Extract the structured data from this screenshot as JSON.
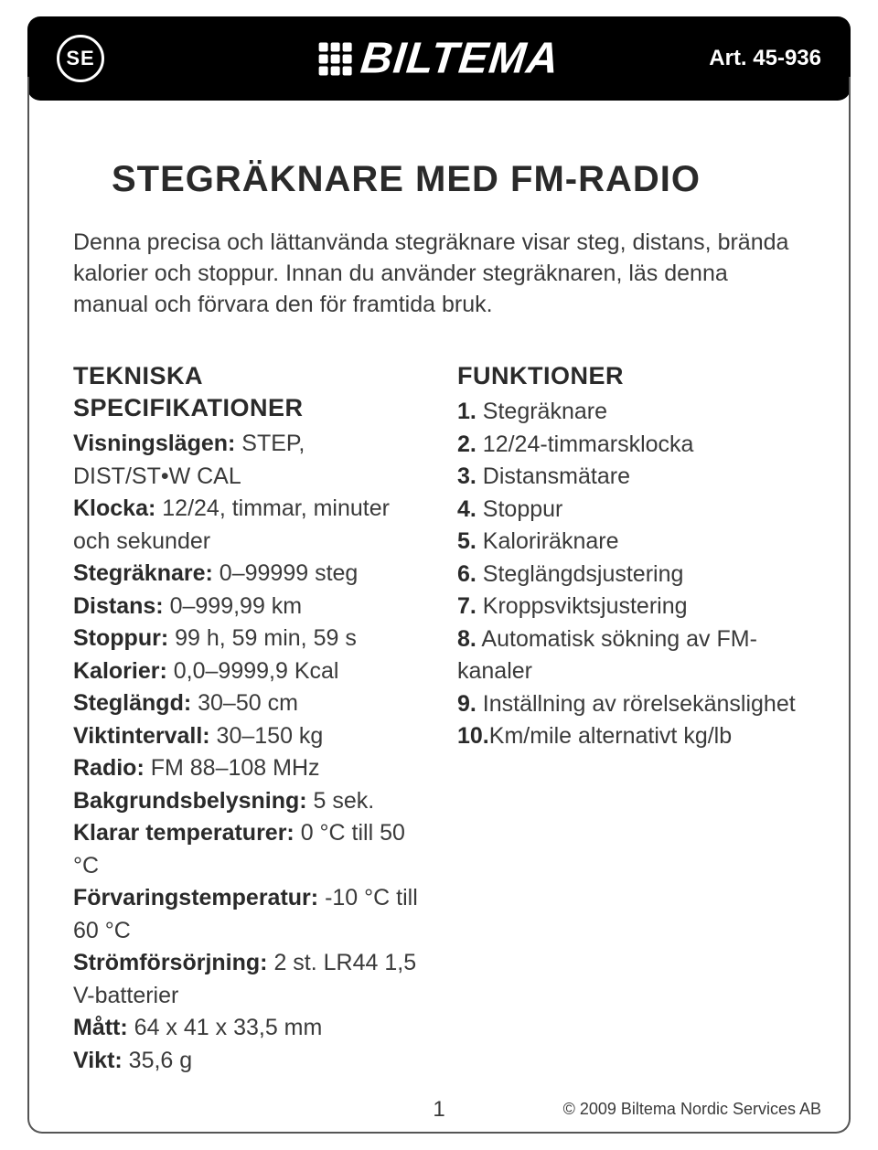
{
  "header": {
    "country_code": "SE",
    "brand": "BILTEMA",
    "art_label": "Art. 45-936"
  },
  "title": "STEGRÄKNARE MED FM-RADIO",
  "intro": "Denna precisa och lättanvända stegräknare visar steg, distans, brända kalorier och stoppur. Innan du använder stegräknaren, läs denna manual och förvara den för framtida bruk.",
  "specs": {
    "heading_line1": "TEKNISKA",
    "heading_line2": "SPECIFIKATIONER",
    "items": [
      {
        "label": "Visningslägen:",
        "value": " STEP, DIST/ST•W CAL"
      },
      {
        "label": "Klocka:",
        "value": " 12/24, timmar, minuter och sekunder"
      },
      {
        "label": "Stegräknare:",
        "value": " 0–99999 steg"
      },
      {
        "label": "Distans:",
        "value": " 0–999,99 km"
      },
      {
        "label": "Stoppur:",
        "value": " 99 h, 59 min, 59 s"
      },
      {
        "label": "Kalorier:",
        "value": " 0,0–9999,9 Kcal"
      },
      {
        "label": "Steglängd:",
        "value": " 30–50 cm"
      },
      {
        "label": "Viktintervall:",
        "value": " 30–150 kg"
      },
      {
        "label": "Radio:",
        "value": " FM 88–108 MHz"
      },
      {
        "label": "Bakgrundsbelysning:",
        "value": " 5 sek."
      },
      {
        "label": "Klarar temperaturer:",
        "value": " 0 °C till 50 °C"
      },
      {
        "label": "Förvaringstemperatur:",
        "value": " -10 °C till 60 °C"
      },
      {
        "label": "Strömförsörjning:",
        "value": " 2 st. LR44 1,5 V-batterier"
      },
      {
        "label": "Mått:",
        "value": " 64 x 41 x 33,5 mm"
      },
      {
        "label": "Vikt:",
        "value": " 35,6 g"
      }
    ]
  },
  "functions": {
    "heading": "FUNKTIONER",
    "items": [
      {
        "num": "1.",
        "text": " Stegräknare"
      },
      {
        "num": "2.",
        "text": " 12/24-timmarsklocka"
      },
      {
        "num": "3.",
        "text": " Distansmätare"
      },
      {
        "num": "4.",
        "text": " Stoppur"
      },
      {
        "num": "5.",
        "text": " Kaloriräknare"
      },
      {
        "num": "6.",
        "text": " Steglängdsjustering"
      },
      {
        "num": "7.",
        "text": " Kroppsviktsjustering"
      },
      {
        "num": "8.",
        "text": " Automatisk sökning av FM-kanaler"
      },
      {
        "num": "9.",
        "text": " Inställning av rörelsekänslighet"
      },
      {
        "num": "10.",
        "text": "Km/mile alternativt kg/lb"
      }
    ]
  },
  "page_number": "1",
  "copyright": "© 2009 Biltema Nordic Services AB"
}
